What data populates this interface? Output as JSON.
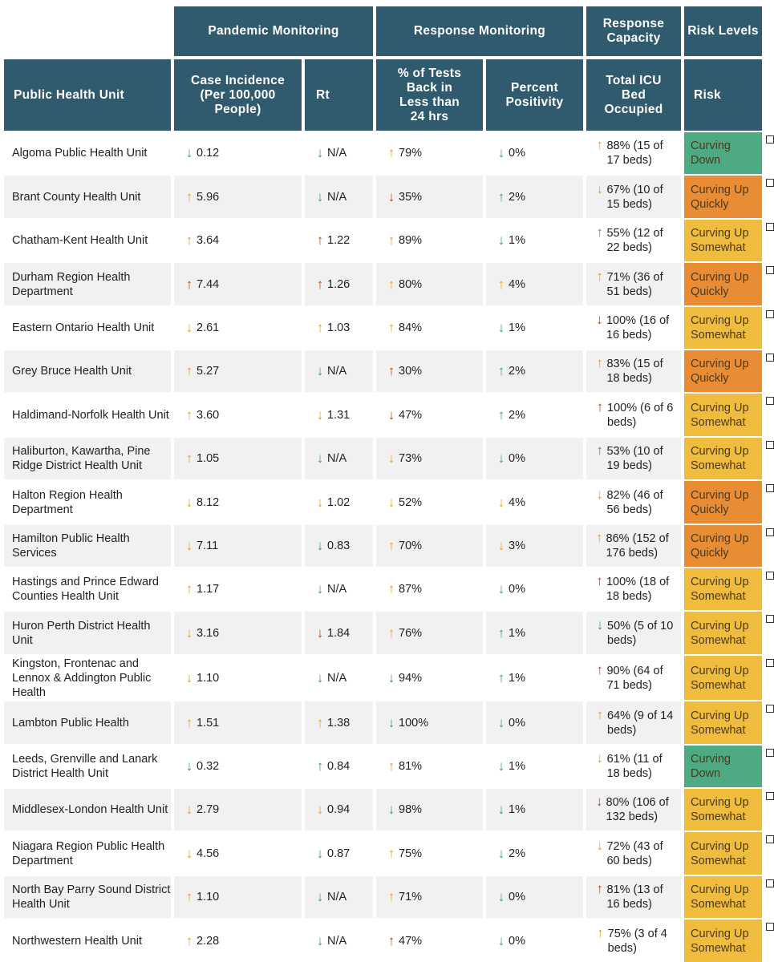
{
  "colors": {
    "header_bg": "#305a6e",
    "arrow_green": "#3f9b78",
    "arrow_yellow": "#e8a318",
    "arrow_red": "#c9461c",
    "risk_curving_down": "#4eaa82",
    "risk_curving_up_quickly": "#e98d34",
    "risk_curving_up_somewhat": "#f0bc3d"
  },
  "header": {
    "groups": {
      "pandemic_monitoring": "Pandemic Monitoring",
      "response_monitoring": "Response Monitoring",
      "response_capacity": "Response Capacity",
      "risk_levels": "Risk Levels"
    },
    "columns": {
      "phu": "Public Health Unit",
      "case_incidence": "Case Incidence (Per 100,000 People)",
      "rt": "Rt",
      "tests_back": "% of Tests Back in Less than 24 hrs",
      "positivity": "Percent Positivity",
      "icu": "Total ICU Bed Occupied",
      "risk": "Risk"
    }
  },
  "rows": [
    {
      "name": "Algoma Public Health Unit",
      "inc": {
        "arrow": "down",
        "color": "green",
        "value": "0.12"
      },
      "rt": {
        "arrow": "down",
        "color": "green",
        "value": "N/A"
      },
      "tests": {
        "arrow": "up",
        "color": "yellow",
        "value": "79%"
      },
      "pos": {
        "arrow": "down",
        "color": "green",
        "value": "0%"
      },
      "icu": {
        "arrow": "up",
        "color": "yellow",
        "value": "88% (15 of 17 beds)"
      },
      "risk": {
        "label": "Curving Down",
        "level": "down"
      }
    },
    {
      "name": "Brant County Health Unit",
      "inc": {
        "arrow": "up",
        "color": "yellow",
        "value": "5.96"
      },
      "rt": {
        "arrow": "down",
        "color": "green",
        "value": "N/A"
      },
      "tests": {
        "arrow": "down",
        "color": "red",
        "value": "35%"
      },
      "pos": {
        "arrow": "up",
        "color": "green",
        "value": "2%"
      },
      "icu": {
        "arrow": "down",
        "color": "yellow",
        "value": "67% (10 of 15 beds)"
      },
      "risk": {
        "label": "Curving Up Quickly",
        "level": "quickly"
      }
    },
    {
      "name": "Chatham-Kent Health Unit",
      "inc": {
        "arrow": "up",
        "color": "yellow",
        "value": "3.64"
      },
      "rt": {
        "arrow": "up",
        "color": "red",
        "value": "1.22"
      },
      "tests": {
        "arrow": "up",
        "color": "yellow",
        "value": "89%"
      },
      "pos": {
        "arrow": "down",
        "color": "green",
        "value": "1%"
      },
      "icu": {
        "arrow": "up",
        "color": "green",
        "value": "55% (12 of 22 beds)"
      },
      "risk": {
        "label": "Curving Up Somewhat",
        "level": "somewhat"
      }
    },
    {
      "name": "Durham Region Health Department",
      "inc": {
        "arrow": "up",
        "color": "red",
        "value": "7.44"
      },
      "rt": {
        "arrow": "up",
        "color": "red",
        "value": "1.26"
      },
      "tests": {
        "arrow": "up",
        "color": "yellow",
        "value": "80%"
      },
      "pos": {
        "arrow": "up",
        "color": "yellow",
        "value": "4%"
      },
      "icu": {
        "arrow": "up",
        "color": "yellow",
        "value": "71% (36 of 51 beds)"
      },
      "risk": {
        "label": "Curving Up Quickly",
        "level": "quickly"
      }
    },
    {
      "name": "Eastern Ontario Health Unit",
      "inc": {
        "arrow": "down",
        "color": "yellow",
        "value": "2.61"
      },
      "rt": {
        "arrow": "up",
        "color": "yellow",
        "value": "1.03"
      },
      "tests": {
        "arrow": "up",
        "color": "yellow",
        "value": "84%"
      },
      "pos": {
        "arrow": "down",
        "color": "green",
        "value": "1%"
      },
      "icu": {
        "arrow": "down",
        "color": "red",
        "value": "100% (16 of 16 beds)"
      },
      "risk": {
        "label": "Curving Up Somewhat",
        "level": "somewhat"
      }
    },
    {
      "name": "Grey Bruce Health Unit",
      "inc": {
        "arrow": "up",
        "color": "yellow",
        "value": "5.27"
      },
      "rt": {
        "arrow": "down",
        "color": "green",
        "value": "N/A"
      },
      "tests": {
        "arrow": "up",
        "color": "red",
        "value": "30%"
      },
      "pos": {
        "arrow": "up",
        "color": "green",
        "value": "2%"
      },
      "icu": {
        "arrow": "up",
        "color": "yellow",
        "value": "83% (15 of 18 beds)"
      },
      "risk": {
        "label": "Curving Up Quickly",
        "level": "quickly"
      }
    },
    {
      "name": "Haldimand-Norfolk Health Unit",
      "inc": {
        "arrow": "up",
        "color": "yellow",
        "value": "3.60"
      },
      "rt": {
        "arrow": "down",
        "color": "yellow",
        "value": "1.31"
      },
      "tests": {
        "arrow": "down",
        "color": "red",
        "value": "47%"
      },
      "pos": {
        "arrow": "up",
        "color": "green",
        "value": "2%"
      },
      "icu": {
        "arrow": "up",
        "color": "red",
        "value": "100% (6 of 6 beds)"
      },
      "risk": {
        "label": "Curving Up Somewhat",
        "level": "somewhat"
      }
    },
    {
      "name": "Haliburton, Kawartha, Pine Ridge District Health Unit",
      "inc": {
        "arrow": "up",
        "color": "yellow",
        "value": "1.05"
      },
      "rt": {
        "arrow": "down",
        "color": "green",
        "value": "N/A"
      },
      "tests": {
        "arrow": "down",
        "color": "yellow",
        "value": "73%"
      },
      "pos": {
        "arrow": "down",
        "color": "green",
        "value": "0%"
      },
      "icu": {
        "arrow": "up",
        "color": "green",
        "value": "53% (10 of 19 beds)"
      },
      "risk": {
        "label": "Curving Up Somewhat",
        "level": "somewhat"
      }
    },
    {
      "name": "Halton Region Health Department",
      "inc": {
        "arrow": "down",
        "color": "yellow",
        "value": "8.12"
      },
      "rt": {
        "arrow": "down",
        "color": "yellow",
        "value": "1.02"
      },
      "tests": {
        "arrow": "down",
        "color": "yellow",
        "value": "52%"
      },
      "pos": {
        "arrow": "down",
        "color": "yellow",
        "value": "4%"
      },
      "icu": {
        "arrow": "down",
        "color": "yellow",
        "value": "82% (46 of 56 beds)"
      },
      "risk": {
        "label": "Curving Up Quickly",
        "level": "quickly"
      }
    },
    {
      "name": "Hamilton Public Health Services",
      "inc": {
        "arrow": "down",
        "color": "yellow",
        "value": "7.11"
      },
      "rt": {
        "arrow": "down",
        "color": "green",
        "value": "0.83"
      },
      "tests": {
        "arrow": "up",
        "color": "yellow",
        "value": "70%"
      },
      "pos": {
        "arrow": "down",
        "color": "yellow",
        "value": "3%"
      },
      "icu": {
        "arrow": "up",
        "color": "yellow",
        "value": "86% (152 of 176 beds)"
      },
      "risk": {
        "label": "Curving Up Quickly",
        "level": "quickly"
      }
    },
    {
      "name": "Hastings and Prince Edward Counties Health Unit",
      "inc": {
        "arrow": "up",
        "color": "yellow",
        "value": "1.17"
      },
      "rt": {
        "arrow": "down",
        "color": "green",
        "value": "N/A"
      },
      "tests": {
        "arrow": "up",
        "color": "yellow",
        "value": "87%"
      },
      "pos": {
        "arrow": "down",
        "color": "green",
        "value": "0%"
      },
      "icu": {
        "arrow": "up",
        "color": "red",
        "value": "100% (18 of 18 beds)"
      },
      "risk": {
        "label": "Curving Up Somewhat",
        "level": "somewhat"
      }
    },
    {
      "name": "Huron Perth District Health Unit",
      "inc": {
        "arrow": "down",
        "color": "yellow",
        "value": "3.16"
      },
      "rt": {
        "arrow": "down",
        "color": "red",
        "value": "1.84"
      },
      "tests": {
        "arrow": "up",
        "color": "yellow",
        "value": "76%"
      },
      "pos": {
        "arrow": "up",
        "color": "green",
        "value": "1%"
      },
      "icu": {
        "arrow": "down",
        "color": "green",
        "value": "50% (5 of 10 beds)"
      },
      "risk": {
        "label": "Curving Up Somewhat",
        "level": "somewhat"
      }
    },
    {
      "name": "Kingston, Frontenac and Lennox & Addington Public Health",
      "inc": {
        "arrow": "down",
        "color": "yellow",
        "value": "1.10"
      },
      "rt": {
        "arrow": "down",
        "color": "green",
        "value": "N/A"
      },
      "tests": {
        "arrow": "down",
        "color": "green",
        "value": "94%"
      },
      "pos": {
        "arrow": "up",
        "color": "green",
        "value": "1%"
      },
      "icu": {
        "arrow": "up",
        "color": "red",
        "value": "90% (64 of 71 beds)"
      },
      "risk": {
        "label": "Curving Up Somewhat",
        "level": "somewhat"
      }
    },
    {
      "name": "Lambton Public Health",
      "inc": {
        "arrow": "up",
        "color": "yellow",
        "value": "1.51"
      },
      "rt": {
        "arrow": "up",
        "color": "yellow",
        "value": "1.38"
      },
      "tests": {
        "arrow": "down",
        "color": "green",
        "value": "100%"
      },
      "pos": {
        "arrow": "down",
        "color": "green",
        "value": "0%"
      },
      "icu": {
        "arrow": "up",
        "color": "yellow",
        "value": "64% (9 of 14 beds)"
      },
      "risk": {
        "label": "Curving Up Somewhat",
        "level": "somewhat"
      }
    },
    {
      "name": "Leeds, Grenville and Lanark District Health Unit",
      "inc": {
        "arrow": "down",
        "color": "green",
        "value": "0.32"
      },
      "rt": {
        "arrow": "up",
        "color": "green",
        "value": "0.84"
      },
      "tests": {
        "arrow": "up",
        "color": "yellow",
        "value": "81%"
      },
      "pos": {
        "arrow": "down",
        "color": "green",
        "value": "1%"
      },
      "icu": {
        "arrow": "down",
        "color": "yellow",
        "value": "61% (11 of 18 beds)"
      },
      "risk": {
        "label": "Curving Down",
        "level": "down"
      }
    },
    {
      "name": "Middlesex-London Health Unit",
      "inc": {
        "arrow": "down",
        "color": "yellow",
        "value": "2.79"
      },
      "rt": {
        "arrow": "down",
        "color": "yellow",
        "value": "0.94"
      },
      "tests": {
        "arrow": "down",
        "color": "green",
        "value": "98%"
      },
      "pos": {
        "arrow": "down",
        "color": "green",
        "value": "1%"
      },
      "icu": {
        "arrow": "down",
        "color": "red",
        "value": "80% (106 of 132 beds)"
      },
      "risk": {
        "label": "Curving Up Somewhat",
        "level": "somewhat"
      }
    },
    {
      "name": "Niagara Region Public Health Department",
      "inc": {
        "arrow": "down",
        "color": "yellow",
        "value": "4.56"
      },
      "rt": {
        "arrow": "down",
        "color": "green",
        "value": "0.87"
      },
      "tests": {
        "arrow": "up",
        "color": "yellow",
        "value": "75%"
      },
      "pos": {
        "arrow": "down",
        "color": "green",
        "value": "2%"
      },
      "icu": {
        "arrow": "down",
        "color": "yellow",
        "value": "72% (43 of 60 beds)"
      },
      "risk": {
        "label": "Curving Up Somewhat",
        "level": "somewhat"
      }
    },
    {
      "name": "North Bay Parry Sound District Health Unit",
      "inc": {
        "arrow": "up",
        "color": "yellow",
        "value": "1.10"
      },
      "rt": {
        "arrow": "down",
        "color": "green",
        "value": "N/A"
      },
      "tests": {
        "arrow": "up",
        "color": "yellow",
        "value": "71%"
      },
      "pos": {
        "arrow": "down",
        "color": "green",
        "value": "0%"
      },
      "icu": {
        "arrow": "up",
        "color": "red",
        "value": "81% (13 of 16 beds)"
      },
      "risk": {
        "label": "Curving Up Somewhat",
        "level": "somewhat"
      }
    },
    {
      "name": "Northwestern Health Unit",
      "inc": {
        "arrow": "up",
        "color": "yellow",
        "value": "2.28"
      },
      "rt": {
        "arrow": "down",
        "color": "green",
        "value": "N/A"
      },
      "tests": {
        "arrow": "up",
        "color": "red",
        "value": "47%"
      },
      "pos": {
        "arrow": "down",
        "color": "green",
        "value": "0%"
      },
      "icu": {
        "arrow": "up",
        "color": "yellow",
        "value": "75% (3 of 4 beds)"
      },
      "risk": {
        "label": "Curving Up Somewhat",
        "level": "somewhat"
      }
    }
  ]
}
